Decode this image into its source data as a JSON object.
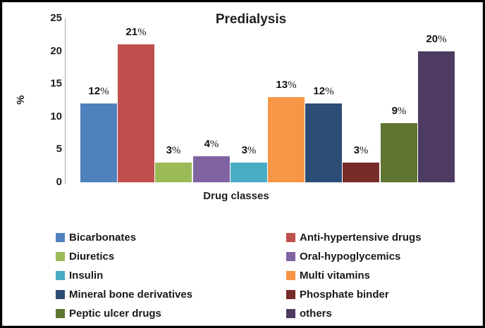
{
  "window": {
    "background": "#ffffff",
    "border_color": "#000000"
  },
  "chart_data": {
    "type": "bar",
    "title": "Predialysis",
    "xlabel": "Drug classes",
    "ylabel": "%",
    "ylim": [
      0,
      25
    ],
    "yticks": [
      25,
      20,
      15,
      10,
      5,
      0
    ],
    "grid": false,
    "legend_position": "bottom, two columns",
    "axis_line_color": "#a6a6a6",
    "series": [
      {
        "name": "Bicarbonates",
        "value": 12,
        "label": "12%",
        "color": "#4F81BD"
      },
      {
        "name": "Anti-hypertensive drugs",
        "value": 21,
        "label": "21%",
        "color": "#C0504D"
      },
      {
        "name": "Diuretics",
        "value": 3,
        "label": "3%",
        "color": "#9BBB59"
      },
      {
        "name": "Oral-hypoglycemics",
        "value": 4,
        "label": "4%",
        "color": "#8064A2"
      },
      {
        "name": "Insulin",
        "value": 3,
        "label": "3%",
        "color": "#4BACC6"
      },
      {
        "name": "Multi vitamins",
        "value": 13,
        "label": "13%",
        "color": "#F79646"
      },
      {
        "name": "Mineral bone derivatives",
        "value": 12,
        "label": "12%",
        "color": "#2C4D75"
      },
      {
        "name": "Phosphate binder",
        "value": 3,
        "label": "3%",
        "color": "#772C2A"
      },
      {
        "name": "Peptic ulcer drugs",
        "value": 9,
        "label": "9%",
        "color": "#5F7530"
      },
      {
        "name": "others",
        "value": 20,
        "label": "20%",
        "color": "#4D3B62"
      }
    ]
  }
}
